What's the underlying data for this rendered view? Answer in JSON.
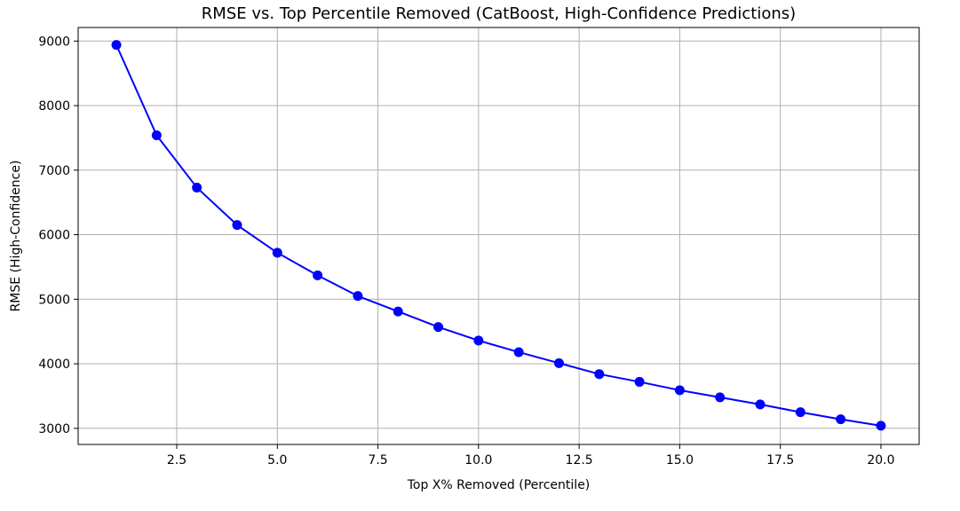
{
  "chart_data": {
    "type": "line",
    "title": "RMSE vs. Top Percentile Removed (CatBoost, High-Confidence Predictions)",
    "xlabel": "Top X% Removed (Percentile)",
    "ylabel": "RMSE (High-Confidence)",
    "xlim": [
      0.05,
      20.95
    ],
    "ylim": [
      2750,
      9210
    ],
    "x_ticks": [
      2.5,
      5.0,
      7.5,
      10.0,
      12.5,
      15.0,
      17.5,
      20.0
    ],
    "x_tick_labels": [
      "2.5",
      "5.0",
      "7.5",
      "10.0",
      "12.5",
      "15.0",
      "17.5",
      "20.0"
    ],
    "y_ticks": [
      3000,
      4000,
      5000,
      6000,
      7000,
      8000,
      9000
    ],
    "y_tick_labels": [
      "3000",
      "4000",
      "5000",
      "6000",
      "7000",
      "8000",
      "9000"
    ],
    "grid": true,
    "series": [
      {
        "color": "#0000ff",
        "marker": "circle",
        "x": [
          1,
          2,
          3,
          4,
          5,
          6,
          7,
          8,
          9,
          10,
          11,
          12,
          13,
          14,
          15,
          16,
          17,
          18,
          19,
          20
        ],
        "y": [
          8940,
          7540,
          6730,
          6150,
          5720,
          5370,
          5050,
          4810,
          4570,
          4360,
          4180,
          4010,
          3840,
          3720,
          3590,
          3480,
          3370,
          3250,
          3140,
          3040
        ]
      }
    ]
  }
}
